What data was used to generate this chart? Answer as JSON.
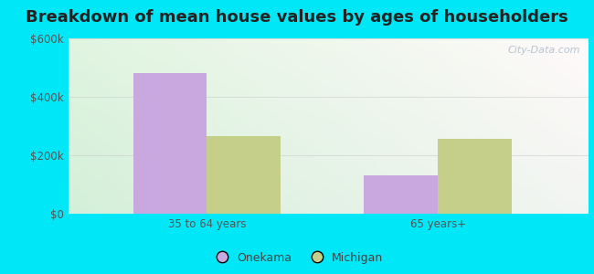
{
  "title": "Breakdown of mean house values by ages of householders",
  "categories": [
    "35 to 64 years",
    "65 years+"
  ],
  "onekama_values": [
    480000,
    130000
  ],
  "michigan_values": [
    265000,
    255000
  ],
  "onekama_color": "#c9a8df",
  "michigan_color": "#c5cf8a",
  "ylim": [
    0,
    600000
  ],
  "yticks": [
    0,
    200000,
    400000,
    600000
  ],
  "ytick_labels": [
    "$0",
    "$200k",
    "$400k",
    "$600k"
  ],
  "outer_color": "#00e8f8",
  "bar_width": 0.32,
  "legend_labels": [
    "Onekama",
    "Michigan"
  ],
  "watermark": "City-Data.com",
  "title_fontsize": 13,
  "tick_fontsize": 8.5,
  "legend_fontsize": 9
}
